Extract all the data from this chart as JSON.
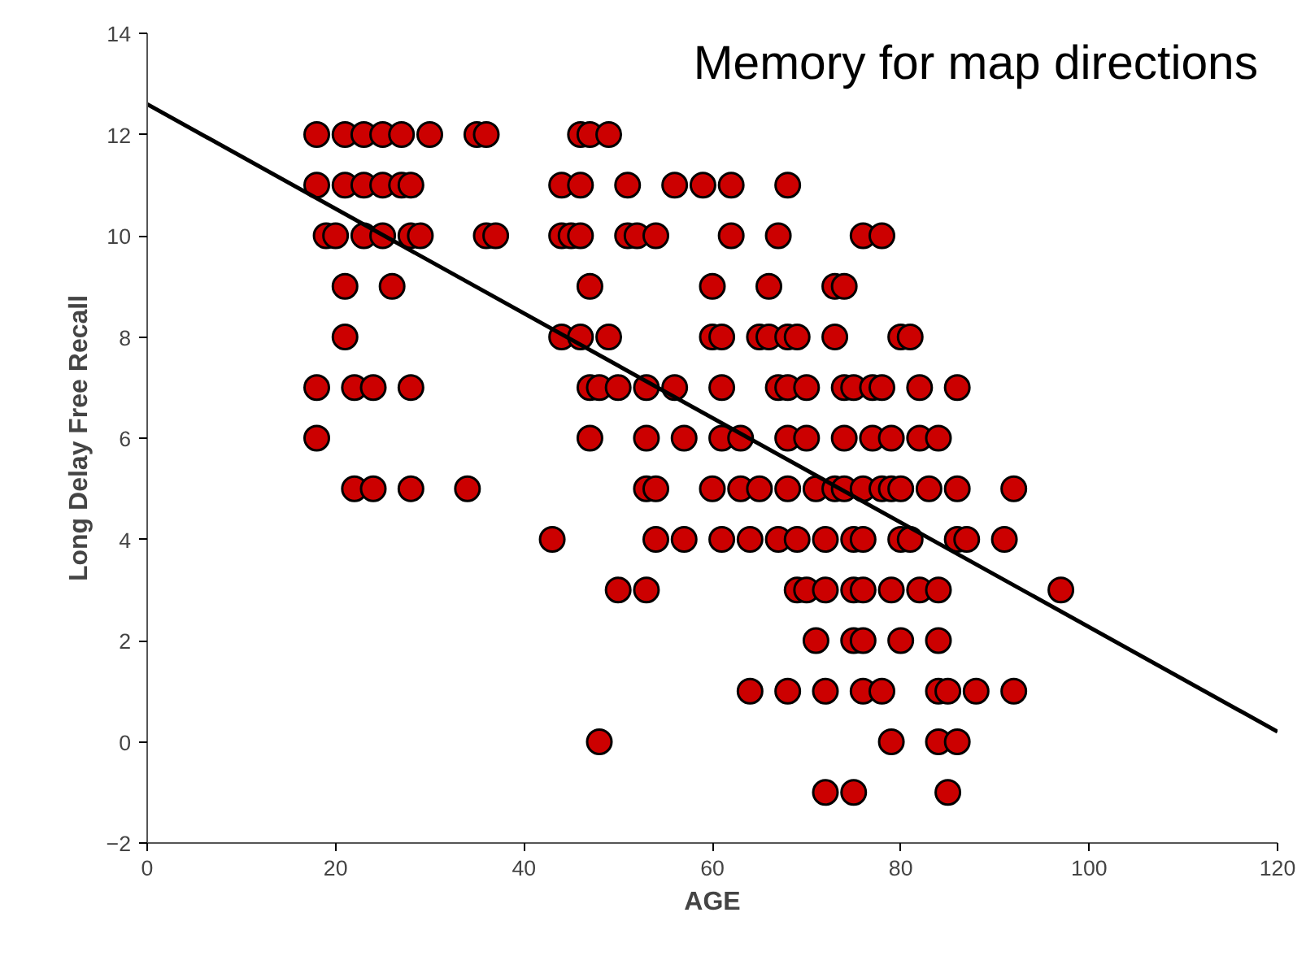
{
  "chart_data": {
    "type": "scatter",
    "title": "Memory for map directions",
    "xlabel": "AGE",
    "ylabel": "Long Delay Free Recall",
    "xlim": [
      0,
      120
    ],
    "ylim": [
      -2,
      14
    ],
    "xticks": [
      0,
      20,
      40,
      60,
      80,
      100,
      120
    ],
    "yticks": [
      -2,
      0,
      2,
      4,
      6,
      8,
      10,
      12,
      14
    ],
    "grid": false,
    "marker": "circle",
    "series": [
      {
        "color": "#cc0000",
        "x": [
          18,
          21,
          23,
          25,
          27,
          30,
          35,
          36,
          46,
          47,
          49,
          18,
          21,
          23,
          25,
          27,
          28,
          44,
          46,
          51,
          56,
          59,
          62,
          68,
          19,
          20,
          23,
          25,
          28,
          29,
          36,
          37,
          44,
          45,
          46,
          51,
          52,
          54,
          62,
          67,
          76,
          78,
          21,
          26,
          47,
          60,
          66,
          73,
          74,
          21,
          44,
          46,
          49,
          60,
          61,
          65,
          66,
          68,
          69,
          73,
          80,
          81,
          18,
          22,
          24,
          28,
          47,
          48,
          50,
          53,
          56,
          61,
          67,
          68,
          70,
          74,
          75,
          77,
          78,
          82,
          86,
          18,
          47,
          53,
          57,
          61,
          63,
          68,
          70,
          74,
          77,
          79,
          82,
          84,
          22,
          24,
          28,
          34,
          53,
          54,
          60,
          63,
          65,
          68,
          71,
          73,
          74,
          76,
          78,
          79,
          80,
          83,
          86,
          92,
          43,
          54,
          57,
          61,
          64,
          67,
          69,
          72,
          75,
          76,
          80,
          81,
          86,
          87,
          91,
          50,
          53,
          69,
          70,
          72,
          75,
          76,
          79,
          82,
          84,
          97,
          71,
          75,
          76,
          80,
          84,
          64,
          68,
          72,
          76,
          78,
          84,
          85,
          88,
          92,
          48,
          79,
          84,
          86,
          72,
          75,
          85
        ],
        "values": [
          12,
          12,
          12,
          12,
          12,
          12,
          12,
          12,
          12,
          12,
          12,
          11,
          11,
          11,
          11,
          11,
          11,
          11,
          11,
          11,
          11,
          11,
          11,
          11,
          10,
          10,
          10,
          10,
          10,
          10,
          10,
          10,
          10,
          10,
          10,
          10,
          10,
          10,
          10,
          10,
          10,
          10,
          9,
          9,
          9,
          9,
          9,
          9,
          9,
          8,
          8,
          8,
          8,
          8,
          8,
          8,
          8,
          8,
          8,
          8,
          8,
          8,
          7,
          7,
          7,
          7,
          7,
          7,
          7,
          7,
          7,
          7,
          7,
          7,
          7,
          7,
          7,
          7,
          7,
          7,
          7,
          6,
          6,
          6,
          6,
          6,
          6,
          6,
          6,
          6,
          6,
          6,
          6,
          6,
          5,
          5,
          5,
          5,
          5,
          5,
          5,
          5,
          5,
          5,
          5,
          5,
          5,
          5,
          5,
          5,
          5,
          5,
          5,
          5,
          4,
          4,
          4,
          4,
          4,
          4,
          4,
          4,
          4,
          4,
          4,
          4,
          4,
          4,
          4,
          3,
          3,
          3,
          3,
          3,
          3,
          3,
          3,
          3,
          3,
          3,
          2,
          2,
          2,
          2,
          2,
          1,
          1,
          1,
          1,
          1,
          1,
          1,
          1,
          1,
          0,
          0,
          0,
          0,
          -1,
          -1,
          -1
        ]
      },
      {
        "type": "line",
        "color": "#000000",
        "marker": "none",
        "x": [
          0,
          120
        ],
        "values": [
          12.6,
          0.2
        ]
      }
    ]
  }
}
